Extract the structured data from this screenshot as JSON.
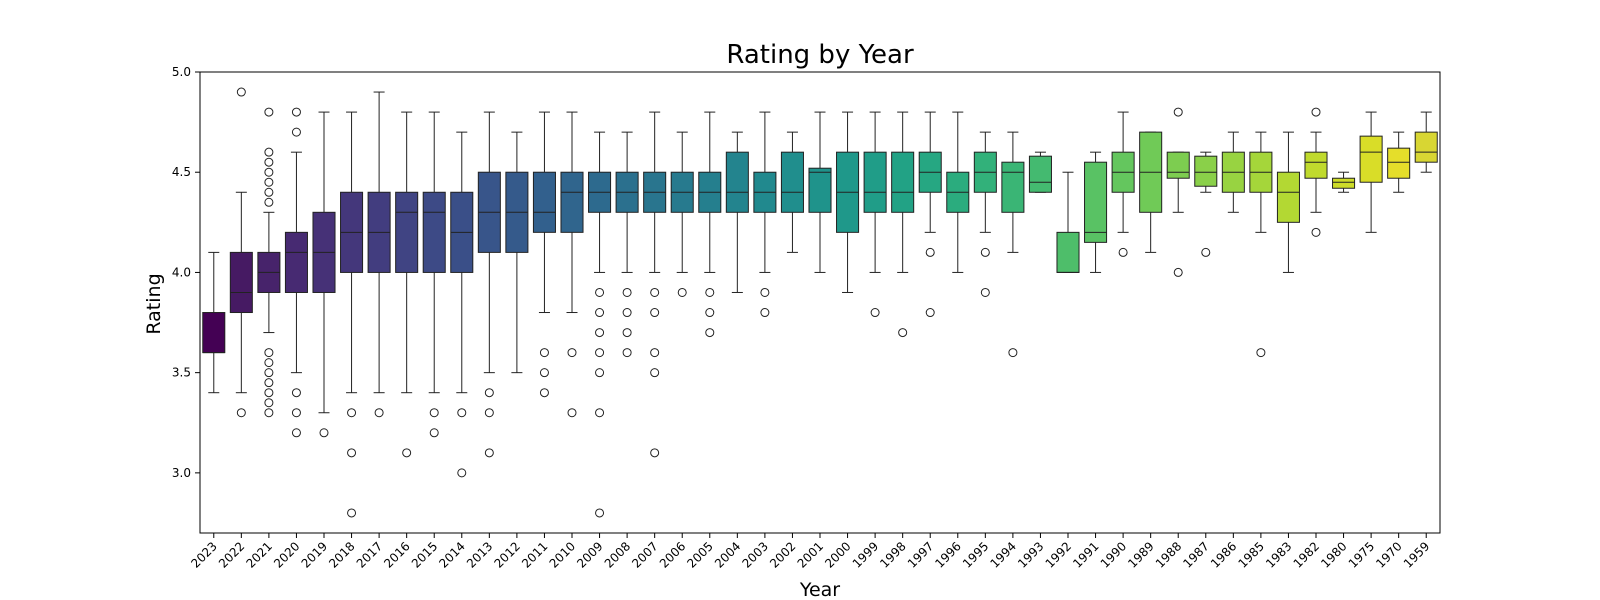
{
  "chart_data": {
    "type": "box",
    "title": "Rating by Year",
    "xlabel": "Year",
    "ylabel": "Rating",
    "ylim": [
      2.7,
      5.0
    ],
    "yticks": [
      "3.0",
      "3.5",
      "4.0",
      "4.5",
      "5.0"
    ],
    "grid": false,
    "legend": "none",
    "series": [
      {
        "category": "2023",
        "whisker_low": 3.4,
        "q1": 3.6,
        "median": 3.6,
        "q3": 3.8,
        "whisker_high": 4.1,
        "outliers": [],
        "color": "#440154"
      },
      {
        "category": "2022",
        "whisker_low": 3.4,
        "q1": 3.8,
        "median": 3.9,
        "q3": 4.1,
        "whisker_high": 4.4,
        "outliers": [
          4.9,
          3.3
        ],
        "color": "#461a63"
      },
      {
        "category": "2021",
        "whisker_low": 3.7,
        "q1": 3.9,
        "median": 4.0,
        "q3": 4.1,
        "whisker_high": 4.3,
        "outliers": [
          4.8,
          4.6,
          4.55,
          4.5,
          4.45,
          4.4,
          4.35,
          3.6,
          3.55,
          3.5,
          3.45,
          3.4,
          3.35,
          3.3
        ],
        "color": "#47236b"
      },
      {
        "category": "2020",
        "whisker_low": 3.5,
        "q1": 3.9,
        "median": 4.1,
        "q3": 4.2,
        "whisker_high": 4.6,
        "outliers": [
          4.8,
          4.7,
          3.4,
          3.3,
          3.2
        ],
        "color": "#472a72"
      },
      {
        "category": "2019",
        "whisker_low": 3.3,
        "q1": 3.9,
        "median": 4.1,
        "q3": 4.3,
        "whisker_high": 4.8,
        "outliers": [
          3.2
        ],
        "color": "#463177"
      },
      {
        "category": "2018",
        "whisker_low": 3.4,
        "q1": 4.0,
        "median": 4.2,
        "q3": 4.4,
        "whisker_high": 4.8,
        "outliers": [
          3.3,
          3.1,
          2.8
        ],
        "color": "#44377b"
      },
      {
        "category": "2017",
        "whisker_low": 3.4,
        "q1": 4.0,
        "median": 4.2,
        "q3": 4.4,
        "whisker_high": 4.9,
        "outliers": [
          3.3
        ],
        "color": "#423d7f"
      },
      {
        "category": "2016",
        "whisker_low": 3.4,
        "q1": 4.0,
        "median": 4.3,
        "q3": 4.4,
        "whisker_high": 4.8,
        "outliers": [
          3.1
        ],
        "color": "#404483"
      },
      {
        "category": "2015",
        "whisker_low": 3.4,
        "q1": 4.0,
        "median": 4.3,
        "q3": 4.4,
        "whisker_high": 4.8,
        "outliers": [
          3.3,
          3.2
        ],
        "color": "#3d4a86"
      },
      {
        "category": "2014",
        "whisker_low": 3.4,
        "q1": 4.0,
        "median": 4.2,
        "q3": 4.4,
        "whisker_high": 4.7,
        "outliers": [
          3.3,
          3.0
        ],
        "color": "#3a4f88"
      },
      {
        "category": "2013",
        "whisker_low": 3.5,
        "q1": 4.1,
        "median": 4.3,
        "q3": 4.5,
        "whisker_high": 4.8,
        "outliers": [
          3.4,
          3.3,
          3.1
        ],
        "color": "#38558a"
      },
      {
        "category": "2012",
        "whisker_low": 3.5,
        "q1": 4.1,
        "median": 4.3,
        "q3": 4.5,
        "whisker_high": 4.7,
        "outliers": [],
        "color": "#355a8b"
      },
      {
        "category": "2011",
        "whisker_low": 3.8,
        "q1": 4.2,
        "median": 4.3,
        "q3": 4.5,
        "whisker_high": 4.8,
        "outliers": [
          3.6,
          3.5,
          3.4
        ],
        "color": "#32608d"
      },
      {
        "category": "2010",
        "whisker_low": 3.8,
        "q1": 4.2,
        "median": 4.4,
        "q3": 4.5,
        "whisker_high": 4.8,
        "outliers": [
          3.6,
          3.3
        ],
        "color": "#30658d"
      },
      {
        "category": "2009",
        "whisker_low": 4.0,
        "q1": 4.3,
        "median": 4.4,
        "q3": 4.5,
        "whisker_high": 4.7,
        "outliers": [
          3.9,
          3.8,
          3.7,
          3.6,
          3.5,
          3.3,
          2.8
        ],
        "color": "#2d6a8e"
      },
      {
        "category": "2008",
        "whisker_low": 4.0,
        "q1": 4.3,
        "median": 4.4,
        "q3": 4.5,
        "whisker_high": 4.7,
        "outliers": [
          3.9,
          3.8,
          3.7,
          3.6
        ],
        "color": "#2b708e"
      },
      {
        "category": "2007",
        "whisker_low": 4.0,
        "q1": 4.3,
        "median": 4.4,
        "q3": 4.5,
        "whisker_high": 4.8,
        "outliers": [
          3.9,
          3.8,
          3.6,
          3.5,
          3.1
        ],
        "color": "#29758e"
      },
      {
        "category": "2006",
        "whisker_low": 4.0,
        "q1": 4.3,
        "median": 4.4,
        "q3": 4.5,
        "whisker_high": 4.7,
        "outliers": [
          3.9
        ],
        "color": "#277a8e"
      },
      {
        "category": "2005",
        "whisker_low": 4.0,
        "q1": 4.3,
        "median": 4.4,
        "q3": 4.5,
        "whisker_high": 4.8,
        "outliers": [
          3.9,
          3.8,
          3.7
        ],
        "color": "#257f8e"
      },
      {
        "category": "2004",
        "whisker_low": 3.9,
        "q1": 4.3,
        "median": 4.4,
        "q3": 4.6,
        "whisker_high": 4.7,
        "outliers": [],
        "color": "#23848e"
      },
      {
        "category": "2003",
        "whisker_low": 4.0,
        "q1": 4.3,
        "median": 4.4,
        "q3": 4.5,
        "whisker_high": 4.8,
        "outliers": [
          3.9,
          3.8
        ],
        "color": "#21898e"
      },
      {
        "category": "2002",
        "whisker_low": 4.1,
        "q1": 4.3,
        "median": 4.4,
        "q3": 4.6,
        "whisker_high": 4.7,
        "outliers": [],
        "color": "#208e8d"
      },
      {
        "category": "2001",
        "whisker_low": 4.0,
        "q1": 4.3,
        "median": 4.5,
        "q3": 4.52,
        "whisker_high": 4.8,
        "outliers": [],
        "color": "#1f938b"
      },
      {
        "category": "2000",
        "whisker_low": 3.9,
        "q1": 4.2,
        "median": 4.4,
        "q3": 4.6,
        "whisker_high": 4.8,
        "outliers": [],
        "color": "#1f988a"
      },
      {
        "category": "1999",
        "whisker_low": 4.0,
        "q1": 4.3,
        "median": 4.4,
        "q3": 4.6,
        "whisker_high": 4.8,
        "outliers": [
          3.8
        ],
        "color": "#209d88"
      },
      {
        "category": "1998",
        "whisker_low": 4.0,
        "q1": 4.3,
        "median": 4.4,
        "q3": 4.6,
        "whisker_high": 4.8,
        "outliers": [
          3.7
        ],
        "color": "#22a285"
      },
      {
        "category": "1997",
        "whisker_low": 4.2,
        "q1": 4.4,
        "median": 4.5,
        "q3": 4.6,
        "whisker_high": 4.8,
        "outliers": [
          4.1,
          3.8
        ],
        "color": "#26a782"
      },
      {
        "category": "1996",
        "whisker_low": 4.0,
        "q1": 4.3,
        "median": 4.4,
        "q3": 4.5,
        "whisker_high": 4.8,
        "outliers": [],
        "color": "#2bac7e"
      },
      {
        "category": "1995",
        "whisker_low": 4.2,
        "q1": 4.4,
        "median": 4.5,
        "q3": 4.6,
        "whisker_high": 4.7,
        "outliers": [
          4.1,
          3.9
        ],
        "color": "#32b17a"
      },
      {
        "category": "1994",
        "whisker_low": 4.1,
        "q1": 4.3,
        "median": 4.5,
        "q3": 4.55,
        "whisker_high": 4.7,
        "outliers": [
          3.6
        ],
        "color": "#3ab575"
      },
      {
        "category": "1993",
        "whisker_low": 4.4,
        "q1": 4.4,
        "median": 4.45,
        "q3": 4.58,
        "whisker_high": 4.6,
        "outliers": [],
        "color": "#44ba70"
      },
      {
        "category": "1992",
        "whisker_low": 4.0,
        "q1": 4.0,
        "median": 4.0,
        "q3": 4.2,
        "whisker_high": 4.5,
        "outliers": [],
        "color": "#4ebe6a"
      },
      {
        "category": "1991",
        "whisker_low": 4.0,
        "q1": 4.15,
        "median": 4.2,
        "q3": 4.55,
        "whisker_high": 4.6,
        "outliers": [],
        "color": "#59c264"
      },
      {
        "category": "1990",
        "whisker_low": 4.2,
        "q1": 4.4,
        "median": 4.5,
        "q3": 4.6,
        "whisker_high": 4.8,
        "outliers": [
          4.1
        ],
        "color": "#64c65e"
      },
      {
        "category": "1989",
        "whisker_low": 4.1,
        "q1": 4.3,
        "median": 4.5,
        "q3": 4.7,
        "whisker_high": 4.7,
        "outliers": [],
        "color": "#70ca57"
      },
      {
        "category": "1988",
        "whisker_low": 4.3,
        "q1": 4.47,
        "median": 4.5,
        "q3": 4.6,
        "whisker_high": 4.6,
        "outliers": [
          4.8,
          4.0
        ],
        "color": "#7dcd50"
      },
      {
        "category": "1987",
        "whisker_low": 4.4,
        "q1": 4.43,
        "median": 4.5,
        "q3": 4.58,
        "whisker_high": 4.6,
        "outliers": [
          4.1
        ],
        "color": "#8ad049"
      },
      {
        "category": "1986",
        "whisker_low": 4.3,
        "q1": 4.4,
        "median": 4.5,
        "q3": 4.6,
        "whisker_high": 4.7,
        "outliers": [],
        "color": "#98d341"
      },
      {
        "category": "1985",
        "whisker_low": 4.2,
        "q1": 4.4,
        "median": 4.5,
        "q3": 4.6,
        "whisker_high": 4.7,
        "outliers": [
          3.6
        ],
        "color": "#a5d63a"
      },
      {
        "category": "1983",
        "whisker_low": 4.0,
        "q1": 4.25,
        "median": 4.4,
        "q3": 4.5,
        "whisker_high": 4.7,
        "outliers": [],
        "color": "#b3d833"
      },
      {
        "category": "1982",
        "whisker_low": 4.3,
        "q1": 4.47,
        "median": 4.55,
        "q3": 4.6,
        "whisker_high": 4.7,
        "outliers": [
          4.8,
          4.2
        ],
        "color": "#c0da2d"
      },
      {
        "category": "1980",
        "whisker_low": 4.4,
        "q1": 4.42,
        "median": 4.45,
        "q3": 4.47,
        "whisker_high": 4.5,
        "outliers": [],
        "color": "#cddc29"
      },
      {
        "category": "1975",
        "whisker_low": 4.2,
        "q1": 4.45,
        "median": 4.6,
        "q3": 4.68,
        "whisker_high": 4.8,
        "outliers": [],
        "color": "#d9dd28"
      },
      {
        "category": "1970",
        "whisker_low": 4.4,
        "q1": 4.47,
        "median": 4.55,
        "q3": 4.62,
        "whisker_high": 4.7,
        "outliers": [],
        "color": "#e5de2a"
      },
      {
        "category": "1959",
        "whisker_low": 4.5,
        "q1": 4.55,
        "median": 4.6,
        "q3": 4.7,
        "whisker_high": 4.8,
        "outliers": [],
        "color": "#d8d633"
      }
    ]
  }
}
